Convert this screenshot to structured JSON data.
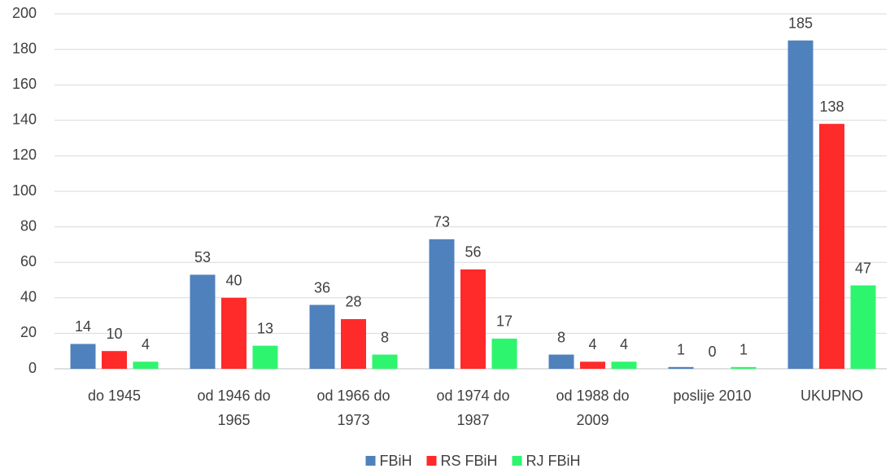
{
  "chart_data": {
    "type": "bar",
    "categories": [
      "do 1945",
      "od 1946 do 1965",
      "od 1966 do 1973",
      "od 1974 do 1987",
      "od 1988 do 2009",
      "poslije 2010",
      "UKUPNO"
    ],
    "series": [
      {
        "name": "FBiH",
        "color": "#4f81bd",
        "values": [
          14,
          53,
          36,
          73,
          8,
          1,
          185
        ]
      },
      {
        "name": "RS FBiH",
        "color": "#ff2a2a",
        "values": [
          10,
          40,
          28,
          56,
          4,
          0,
          138
        ]
      },
      {
        "name": "RJ FBiH",
        "color": "#2ef56e",
        "values": [
          4,
          13,
          8,
          17,
          4,
          1,
          47
        ]
      }
    ],
    "ylim": [
      0,
      200
    ],
    "yticks": [
      0,
      20,
      40,
      60,
      80,
      100,
      120,
      140,
      160,
      180,
      200
    ],
    "grid": true,
    "legend": "bottom"
  }
}
